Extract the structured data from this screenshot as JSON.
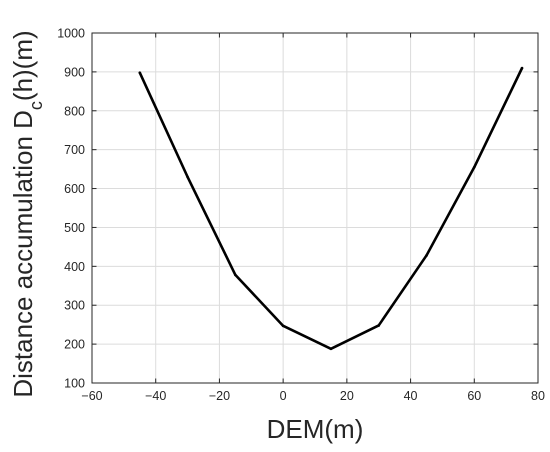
{
  "chart_data": {
    "type": "line",
    "xlabel": "DEM(m)",
    "ylabel": {
      "main": "Distance accumulation D",
      "sub": "c",
      "suffix": "(h)(m)"
    },
    "xlim": [
      -60,
      80
    ],
    "ylim": [
      100,
      1000
    ],
    "xticks": [
      -60,
      -40,
      -20,
      0,
      20,
      40,
      60,
      80
    ],
    "xtick_labels": [
      "−60",
      "−40",
      "−20",
      "0",
      "20",
      "40",
      "60",
      "80"
    ],
    "yticks": [
      100,
      200,
      300,
      400,
      500,
      600,
      700,
      800,
      900,
      1000
    ],
    "ytick_labels": [
      "100",
      "200",
      "300",
      "400",
      "500",
      "600",
      "700",
      "800",
      "900",
      "1000"
    ],
    "grid": true,
    "series": [
      {
        "color": "#000000",
        "x": [
          -45,
          -30,
          -15,
          0,
          15,
          30,
          45,
          60,
          75
        ],
        "y": [
          898,
          630,
          378,
          247,
          188,
          248,
          428,
          655,
          910
        ]
      }
    ]
  }
}
